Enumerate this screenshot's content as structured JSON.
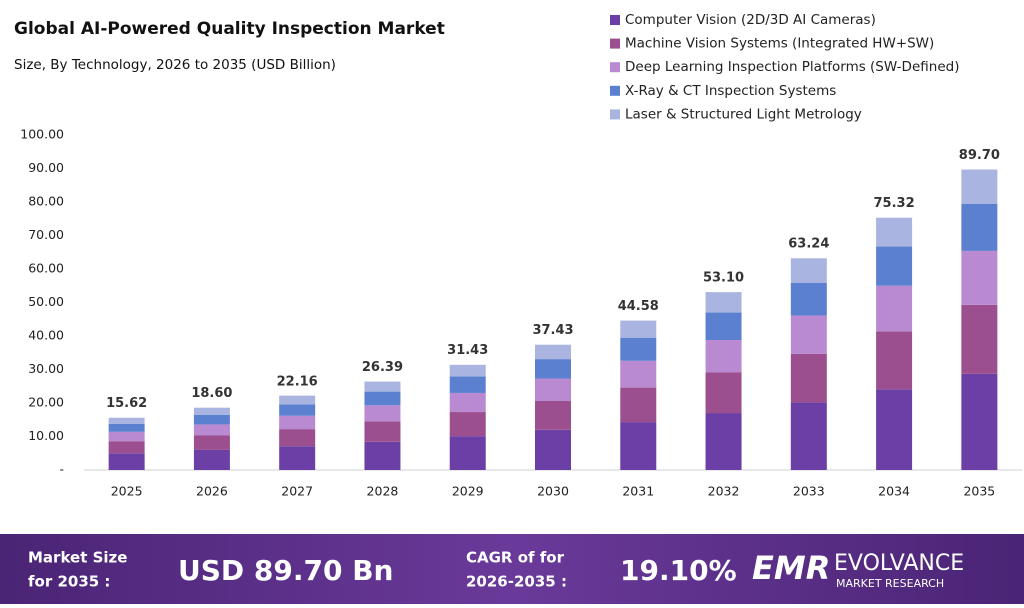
{
  "chart_data": {
    "type": "stacked-bar",
    "title": "Global AI-Powered Quality Inspection Market",
    "subtitle": "Size, By Technology,  2026 to 2035 (USD  Billion)",
    "categories": [
      "2025",
      "2026",
      "2027",
      "2028",
      "2029",
      "2030",
      "2031",
      "2032",
      "2033",
      "2034",
      "2035"
    ],
    "series": [
      {
        "name": "Computer Vision (2D/3D AI Cameras)",
        "color": "#6b3fa6",
        "values": [
          5.0,
          6.0,
          7.1,
          8.4,
          10.1,
          12.0,
          14.3,
          17.0,
          20.2,
          24.1,
          28.7
        ]
      },
      {
        "name": "Machine Vision Systems (Integrated HW+SW)",
        "color": "#9c4f8e",
        "values": [
          3.6,
          4.3,
          5.1,
          6.1,
          7.2,
          8.6,
          10.3,
          12.2,
          14.5,
          17.3,
          20.6
        ]
      },
      {
        "name": "Deep Learning Inspection Platforms (SW-Defined)",
        "color": "#b98ad2",
        "values": [
          2.8,
          3.3,
          4.0,
          4.8,
          5.7,
          6.7,
          8.0,
          9.6,
          11.4,
          13.6,
          16.1
        ]
      },
      {
        "name": "X-Ray & CT Inspection Systems",
        "color": "#5b80cf",
        "values": [
          2.4,
          2.9,
          3.4,
          4.1,
          4.9,
          5.8,
          6.9,
          8.2,
          9.8,
          11.7,
          14.0
        ]
      },
      {
        "name": "Laser & Structured Light Metrology",
        "color": "#a9b5e0",
        "values": [
          1.8,
          2.1,
          2.6,
          3.0,
          3.5,
          4.3,
          5.1,
          6.1,
          7.3,
          8.6,
          10.3
        ]
      }
    ],
    "totals": [
      15.62,
      18.6,
      22.16,
      26.39,
      31.43,
      37.43,
      44.58,
      53.1,
      63.24,
      75.32,
      89.7
    ],
    "total_labels": [
      "15.62",
      "18.60",
      "22.16",
      "26.39",
      "31.43",
      "37.43",
      "44.58",
      "53.10",
      "63.24",
      "75.32",
      "89.70"
    ],
    "ylim": [
      0,
      100
    ],
    "yticks": [
      {
        "value": 0,
        "label": "-"
      },
      {
        "value": 10,
        "label": "10.00"
      },
      {
        "value": 20,
        "label": "20.00"
      },
      {
        "value": 30,
        "label": "30.00"
      },
      {
        "value": 40,
        "label": "40.00"
      },
      {
        "value": 50,
        "label": "50.00"
      },
      {
        "value": 60,
        "label": "60.00"
      },
      {
        "value": 70,
        "label": "70.00"
      },
      {
        "value": 80,
        "label": "80.00"
      },
      {
        "value": 90,
        "label": "90.00"
      },
      {
        "value": 100,
        "label": "100.00"
      }
    ],
    "grid": false,
    "legend": "top-right"
  },
  "footer": {
    "market_size_label": [
      "Market Size",
      "for 2035 :"
    ],
    "market_size_value": "USD 89.70 Bn",
    "cagr_label": [
      "CAGR of for",
      "2026-2035 :"
    ],
    "cagr_value": "19.10%",
    "logo_mark": "EMR",
    "logo_name": "EVOLVANCE",
    "logo_tagline": "MARKET RESEARCH"
  }
}
